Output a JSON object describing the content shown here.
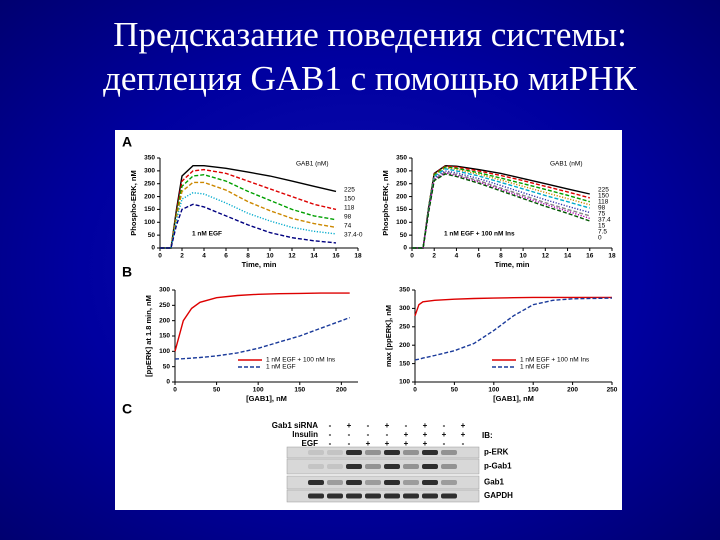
{
  "title": [
    "Предсказание поведения системы:",
    "деплеция GAB1 с помощью миРНК"
  ],
  "panel_labels": [
    "A",
    "B",
    "C"
  ],
  "chart_data": [
    {
      "type": "line",
      "xlabel": "Time, min",
      "ylabel": "Phospho-ERK, nM",
      "annotation": "1 nM EGF",
      "legend_title": "GAB1 (nM)",
      "legend": "right",
      "xlim": [
        0,
        18
      ],
      "xticks": [
        0,
        2,
        4,
        6,
        8,
        10,
        12,
        14,
        16,
        18
      ],
      "ylim": [
        0,
        350
      ],
      "yticks": [
        0,
        50,
        100,
        150,
        200,
        250,
        300,
        350
      ],
      "x": [
        0,
        1,
        1.5,
        2,
        3,
        4,
        6,
        8,
        10,
        12,
        14,
        16
      ],
      "series": [
        {
          "name": "225",
          "color": "#000000",
          "style": "solid",
          "values": [
            0,
            0,
            150,
            280,
            320,
            320,
            310,
            295,
            280,
            260,
            240,
            220
          ]
        },
        {
          "name": "150",
          "color": "#dd0000",
          "style": "dashed",
          "values": [
            0,
            0,
            140,
            260,
            300,
            305,
            290,
            260,
            230,
            200,
            170,
            150
          ]
        },
        {
          "name": "118",
          "color": "#00a000",
          "style": "dashed",
          "values": [
            0,
            0,
            130,
            240,
            280,
            285,
            260,
            220,
            185,
            150,
            125,
            110
          ]
        },
        {
          "name": "98",
          "color": "#cc8800",
          "style": "dashed",
          "values": [
            0,
            0,
            120,
            220,
            255,
            255,
            225,
            180,
            145,
            115,
            95,
            80
          ]
        },
        {
          "name": "74",
          "color": "#00aacc",
          "style": "dotted",
          "values": [
            0,
            0,
            110,
            190,
            215,
            210,
            175,
            135,
            105,
            80,
            65,
            55
          ]
        },
        {
          "name": "37.4-0",
          "color": "#000080",
          "style": "dashed",
          "values": [
            0,
            0,
            90,
            150,
            170,
            160,
            125,
            90,
            60,
            40,
            28,
            20
          ]
        }
      ]
    },
    {
      "type": "line",
      "xlabel": "Time, min",
      "ylabel": "Phospho-ERK, nM",
      "annotation": "1 nM EGF + 100 nM Ins",
      "legend_title": "GAB1 (nM)",
      "legend": "right",
      "xlim": [
        0,
        18
      ],
      "xticks": [
        0,
        2,
        4,
        6,
        8,
        10,
        12,
        14,
        16,
        18
      ],
      "ylim": [
        0,
        350
      ],
      "yticks": [
        0,
        50,
        100,
        150,
        200,
        250,
        300,
        350
      ],
      "x": [
        0,
        1,
        1.5,
        2,
        3,
        4,
        6,
        8,
        10,
        12,
        14,
        16
      ],
      "series": [
        {
          "name": "225",
          "color": "#000000",
          "style": "solid",
          "values": [
            0,
            0,
            160,
            290,
            320,
            318,
            305,
            290,
            270,
            250,
            230,
            210
          ]
        },
        {
          "name": "150",
          "color": "#dd0000",
          "style": "dashed",
          "values": [
            0,
            0,
            160,
            288,
            318,
            315,
            300,
            282,
            262,
            240,
            218,
            195
          ]
        },
        {
          "name": "118",
          "color": "#00a000",
          "style": "dashed",
          "values": [
            0,
            0,
            158,
            285,
            315,
            310,
            293,
            272,
            250,
            228,
            205,
            180
          ]
        },
        {
          "name": "98",
          "color": "#cc8800",
          "style": "dotted",
          "values": [
            0,
            0,
            155,
            282,
            312,
            306,
            287,
            264,
            240,
            216,
            192,
            168
          ]
        },
        {
          "name": "75",
          "color": "#00aacc",
          "style": "dashed",
          "values": [
            0,
            0,
            152,
            278,
            308,
            300,
            280,
            255,
            230,
            204,
            180,
            155
          ]
        },
        {
          "name": "37.4",
          "color": "#3333aa",
          "style": "dotted",
          "values": [
            0,
            0,
            148,
            272,
            300,
            292,
            270,
            243,
            215,
            188,
            162,
            138
          ]
        },
        {
          "name": "15",
          "color": "#888888",
          "style": "dashed",
          "values": [
            0,
            0,
            145,
            268,
            295,
            286,
            262,
            233,
            205,
            176,
            150,
            125
          ]
        },
        {
          "name": "7.5",
          "color": "#aa00aa",
          "style": "dotted",
          "values": [
            0,
            0,
            143,
            266,
            292,
            282,
            257,
            228,
            198,
            170,
            143,
            115
          ]
        },
        {
          "name": "0",
          "color": "#005500",
          "style": "dashed",
          "values": [
            0,
            0,
            140,
            262,
            288,
            278,
            252,
            222,
            192,
            162,
            135,
            105
          ]
        }
      ]
    },
    {
      "type": "line",
      "xlabel": "[GAB1], nM",
      "ylabel": "[ppERK] at 1.8 min, nM",
      "legend": "lower right",
      "xlim": [
        0,
        220
      ],
      "xticks": [
        0,
        50,
        100,
        150,
        200
      ],
      "ylim": [
        0,
        300
      ],
      "yticks": [
        0,
        50,
        100,
        150,
        200,
        250,
        300
      ],
      "x": [
        0,
        10,
        20,
        30,
        50,
        75,
        100,
        125,
        150,
        175,
        200,
        210
      ],
      "series": [
        {
          "name": "1 nM EGF + 100 nM Ins",
          "color": "#dd0000",
          "style": "solid",
          "values": [
            100,
            200,
            240,
            260,
            275,
            282,
            286,
            288,
            289,
            290,
            290,
            290
          ]
        },
        {
          "name": "1 nM EGF",
          "color": "#1a3a9a",
          "style": "dashed",
          "values": [
            75,
            76,
            78,
            80,
            85,
            95,
            110,
            130,
            150,
            175,
            200,
            210
          ]
        }
      ]
    },
    {
      "type": "line",
      "xlabel": "[GAB1], nM",
      "ylabel": "max [ppERK], nM",
      "legend": "lower right",
      "xlim": [
        0,
        250
      ],
      "xticks": [
        0,
        50,
        100,
        150,
        200,
        250
      ],
      "ylim": [
        100,
        350
      ],
      "yticks": [
        100,
        150,
        200,
        250,
        300,
        350
      ],
      "x": [
        0,
        5,
        10,
        25,
        50,
        75,
        100,
        125,
        150,
        175,
        200,
        250
      ],
      "series": [
        {
          "name": "1 nM EGF + 100 nM Ins",
          "color": "#dd0000",
          "style": "solid",
          "values": [
            280,
            310,
            318,
            322,
            325,
            327,
            328,
            329,
            330,
            330,
            330,
            330
          ]
        },
        {
          "name": "1 nM EGF",
          "color": "#1a3a9a",
          "style": "dashed",
          "values": [
            160,
            162,
            165,
            172,
            185,
            205,
            240,
            280,
            310,
            322,
            326,
            328
          ]
        }
      ]
    }
  ],
  "blot": {
    "conditions": [
      {
        "name": "Gab1 siRNA",
        "signs": [
          "-",
          "+",
          "-",
          "+",
          "-",
          "+",
          "-",
          "+"
        ]
      },
      {
        "name": "Insulin",
        "signs": [
          "-",
          "-",
          "-",
          "-",
          "+",
          "+",
          "+",
          "+"
        ]
      },
      {
        "name": "EGF",
        "signs": [
          "-",
          "-",
          "+",
          "+",
          "+",
          "+",
          "-",
          "-"
        ]
      }
    ],
    "ib": "IB:",
    "rows": [
      "p-ERK",
      "p-Gab1",
      "Gab1",
      "GAPDH"
    ]
  }
}
